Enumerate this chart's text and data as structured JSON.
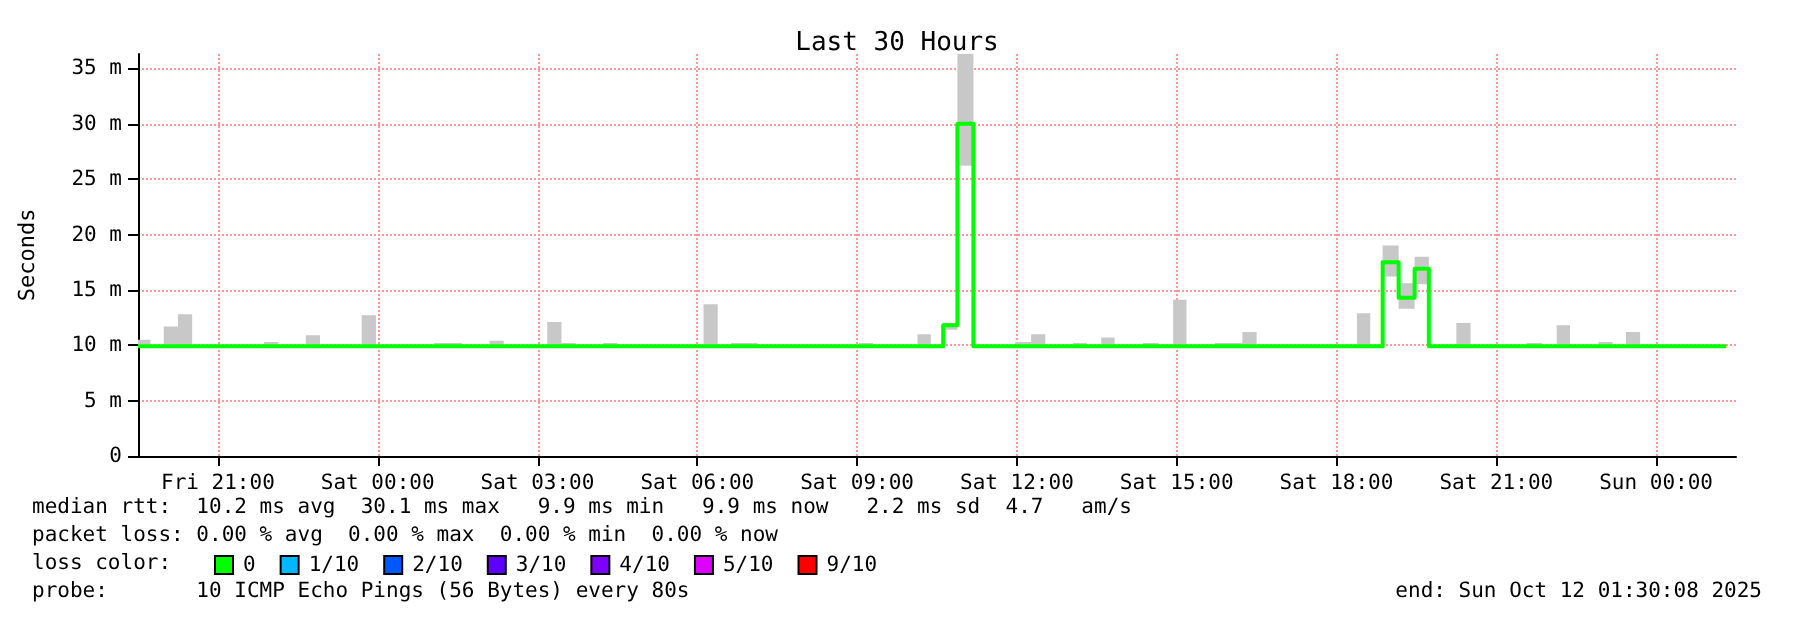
{
  "chart_data": {
    "type": "step",
    "title": "Last 30 Hours",
    "ylabel": "Seconds",
    "legend_title": "loss color:",
    "x": [
      "2025-10-10T19:30",
      "2025-10-10T19:44",
      "2025-10-10T19:59",
      "2025-10-10T20:15",
      "2025-10-10T20:31",
      "2025-10-10T21:52",
      "2025-10-10T22:08",
      "2025-10-10T22:39",
      "2025-10-10T22:55",
      "2025-10-10T23:42",
      "2025-10-10T23:58",
      "2025-10-11T01:03",
      "2025-10-11T01:35",
      "2025-10-11T02:06",
      "2025-10-11T02:22",
      "2025-10-11T03:11",
      "2025-10-11T03:27",
      "2025-10-11T03:43",
      "2025-10-11T04:14",
      "2025-10-11T04:30",
      "2025-10-11T06:07",
      "2025-10-11T06:23",
      "2025-10-11T06:38",
      "2025-10-11T07:08",
      "2025-10-11T09:02",
      "2025-10-11T09:18",
      "2025-10-11T10:08",
      "2025-10-11T10:23",
      "2025-10-11T10:37",
      "2025-10-11T10:53",
      "2025-10-11T11:11",
      "2025-10-11T11:58",
      "2025-10-11T12:16",
      "2025-10-11T12:32",
      "2025-10-11T13:03",
      "2025-10-11T13:19",
      "2025-10-11T13:35",
      "2025-10-11T13:50",
      "2025-10-11T14:22",
      "2025-10-11T14:40",
      "2025-10-11T14:56",
      "2025-10-11T15:11",
      "2025-10-11T15:43",
      "2025-10-11T16:14",
      "2025-10-11T16:30",
      "2025-10-11T18:23",
      "2025-10-11T18:38",
      "2025-10-11T18:52",
      "2025-10-11T19:10",
      "2025-10-11T19:28",
      "2025-10-11T19:44",
      "2025-10-11T20:15",
      "2025-10-11T20:31",
      "2025-10-11T21:34",
      "2025-10-11T21:52",
      "2025-10-11T22:08",
      "2025-10-11T22:23",
      "2025-10-11T22:55",
      "2025-10-11T23:11",
      "2025-10-11T23:26",
      "2025-10-11T23:42",
      "2025-10-12T01:19"
    ],
    "series": [
      {
        "name": "0",
        "color": "#00ff00",
        "values": [
          9.9,
          9.9,
          9.9,
          9.9,
          9.9,
          9.9,
          9.9,
          9.9,
          9.9,
          9.9,
          9.9,
          9.9,
          9.9,
          9.9,
          9.9,
          9.9,
          9.9,
          9.9,
          9.9,
          9.9,
          9.9,
          9.9,
          9.9,
          9.9,
          9.9,
          9.9,
          9.9,
          9.9,
          11.8,
          30,
          9.9,
          9.9,
          9.9,
          9.9,
          9.9,
          9.9,
          9.9,
          9.9,
          9.9,
          9.9,
          9.9,
          9.9,
          9.9,
          9.9,
          9.9,
          9.9,
          9.9,
          17.5,
          14.3,
          16.9,
          9.9,
          9.9,
          9.9,
          9.9,
          9.9,
          9.9,
          9.9,
          9.9,
          9.9,
          9.9,
          9.9,
          9.9
        ],
        "lower": [
          9.9,
          9.9,
          9.9,
          9.9,
          9.9,
          9.9,
          9.9,
          9.9,
          9.9,
          9.9,
          9.9,
          9.9,
          9.9,
          9.9,
          9.9,
          9.9,
          9.9,
          9.9,
          9.9,
          9.9,
          9.9,
          9.9,
          9.9,
          9.9,
          9.9,
          9.9,
          9.9,
          9.9,
          11.4,
          26.2,
          9.9,
          9.9,
          9.9,
          9.9,
          9.9,
          9.9,
          9.9,
          9.9,
          9.9,
          9.9,
          9.9,
          9.9,
          9.9,
          9.9,
          9.9,
          9.9,
          9.9,
          16.2,
          13.3,
          15.5,
          9.9,
          9.9,
          9.9,
          9.9,
          9.9,
          9.9,
          9.9,
          9.9,
          9.9,
          9.9,
          9.9,
          9.9
        ],
        "upper": [
          10.5,
          9.9,
          11.7,
          12.8,
          9.9,
          10.3,
          9.9,
          10.9,
          9.9,
          12.7,
          9.9,
          10.2,
          9.9,
          10.4,
          9.9,
          12.1,
          10.2,
          9.9,
          10.2,
          9.9,
          13.7,
          9.9,
          10.2,
          9.9,
          10.2,
          9.9,
          11,
          9.9,
          12,
          36.3,
          9.9,
          10.3,
          11,
          9.9,
          10.2,
          9.9,
          10.7,
          9.9,
          10.2,
          9.9,
          14.1,
          9.9,
          10.2,
          11.2,
          9.9,
          12.9,
          9.9,
          19,
          15.6,
          18,
          9.9,
          12,
          9.9,
          10.2,
          9.9,
          11.8,
          9.9,
          10.3,
          9.9,
          11.2,
          9.9,
          9.9
        ]
      },
      {
        "name": "1/10",
        "color": "#00b8ff",
        "values": [
          null,
          null,
          null,
          null,
          null,
          null,
          null,
          null,
          null,
          null,
          null,
          null,
          null,
          null,
          null,
          null,
          null,
          null,
          null,
          null,
          null,
          null,
          null,
          null,
          null,
          null,
          null,
          null,
          null,
          null,
          null,
          null,
          null,
          null,
          null,
          null,
          null,
          null,
          null,
          null,
          null,
          null,
          null,
          null,
          null,
          null,
          null,
          null,
          null,
          null,
          null,
          null,
          null,
          null,
          null,
          null,
          null,
          null,
          null,
          null,
          null,
          null
        ]
      },
      {
        "name": "2/10",
        "color": "#0059ff",
        "values": [
          null,
          null,
          null,
          null,
          null,
          null,
          null,
          null,
          null,
          null,
          null,
          null,
          null,
          null,
          null,
          null,
          null,
          null,
          null,
          null,
          null,
          null,
          null,
          null,
          null,
          null,
          null,
          null,
          null,
          null,
          null,
          null,
          null,
          null,
          null,
          null,
          null,
          null,
          null,
          null,
          null,
          null,
          null,
          null,
          null,
          null,
          null,
          null,
          null,
          null,
          null,
          null,
          null,
          null,
          null,
          null,
          null,
          null,
          null,
          null,
          null,
          null
        ]
      },
      {
        "name": "3/10",
        "color": "#5e00ff",
        "values": [
          null,
          null,
          null,
          null,
          null,
          null,
          null,
          null,
          null,
          null,
          null,
          null,
          null,
          null,
          null,
          null,
          null,
          null,
          null,
          null,
          null,
          null,
          null,
          null,
          null,
          null,
          null,
          null,
          null,
          null,
          null,
          null,
          null,
          null,
          null,
          null,
          null,
          null,
          null,
          null,
          null,
          null,
          null,
          null,
          null,
          null,
          null,
          null,
          null,
          null,
          null,
          null,
          null,
          null,
          null,
          null,
          null,
          null,
          null,
          null,
          null,
          null
        ]
      },
      {
        "name": "4/10",
        "color": "#7e00ff",
        "values": [
          null,
          null,
          null,
          null,
          null,
          null,
          null,
          null,
          null,
          null,
          null,
          null,
          null,
          null,
          null,
          null,
          null,
          null,
          null,
          null,
          null,
          null,
          null,
          null,
          null,
          null,
          null,
          null,
          null,
          null,
          null,
          null,
          null,
          null,
          null,
          null,
          null,
          null,
          null,
          null,
          null,
          null,
          null,
          null,
          null,
          null,
          null,
          null,
          null,
          null,
          null,
          null,
          null,
          null,
          null,
          null,
          null,
          null,
          null,
          null,
          null,
          null
        ]
      },
      {
        "name": "5/10",
        "color": "#dd00ff",
        "values": [
          null,
          null,
          null,
          null,
          null,
          null,
          null,
          null,
          null,
          null,
          null,
          null,
          null,
          null,
          null,
          null,
          null,
          null,
          null,
          null,
          null,
          null,
          null,
          null,
          null,
          null,
          null,
          null,
          null,
          null,
          null,
          null,
          null,
          null,
          null,
          null,
          null,
          null,
          null,
          null,
          null,
          null,
          null,
          null,
          null,
          null,
          null,
          null,
          null,
          null,
          null,
          null,
          null,
          null,
          null,
          null,
          null,
          null,
          null,
          null,
          null,
          null
        ]
      },
      {
        "name": "9/10",
        "color": "#ff0000",
        "values": [
          null,
          null,
          null,
          null,
          null,
          null,
          null,
          null,
          null,
          null,
          null,
          null,
          null,
          null,
          null,
          null,
          null,
          null,
          null,
          null,
          null,
          null,
          null,
          null,
          null,
          null,
          null,
          null,
          null,
          null,
          null,
          null,
          null,
          null,
          null,
          null,
          null,
          null,
          null,
          null,
          null,
          null,
          null,
          null,
          null,
          null,
          null,
          null,
          null,
          null,
          null,
          null,
          null,
          null,
          null,
          null,
          null,
          null,
          null,
          null,
          null,
          null
        ]
      }
    ],
    "xlim": [
      "2025-10-10T19:30",
      "2025-10-12T01:30"
    ],
    "xticks": [
      {
        "value": "2025-10-10T21:00",
        "label": "Fri 21:00"
      },
      {
        "value": "2025-10-11T00:00",
        "label": "Sat 00:00"
      },
      {
        "value": "2025-10-11T03:00",
        "label": "Sat 03:00"
      },
      {
        "value": "2025-10-11T06:00",
        "label": "Sat 06:00"
      },
      {
        "value": "2025-10-11T09:00",
        "label": "Sat 09:00"
      },
      {
        "value": "2025-10-11T12:00",
        "label": "Sat 12:00"
      },
      {
        "value": "2025-10-11T15:00",
        "label": "Sat 15:00"
      },
      {
        "value": "2025-10-11T18:00",
        "label": "Sat 18:00"
      },
      {
        "value": "2025-10-11T21:00",
        "label": "Sat 21:00"
      },
      {
        "value": "2025-10-12T00:00",
        "label": "Sun 00:00"
      }
    ],
    "ylim": [
      0,
      36.3
    ],
    "yticks": [
      0,
      {
        "value": 5,
        "label": "5 m"
      },
      {
        "value": 10,
        "label": "10 m"
      },
      {
        "value": 15,
        "label": "15 m"
      },
      {
        "value": 20,
        "label": "20 m"
      },
      {
        "value": 25,
        "label": "25 m"
      },
      {
        "value": 30,
        "label": "30 m"
      },
      {
        "value": 35,
        "label": "35 m"
      }
    ],
    "grid": true,
    "legend": "bottom left",
    "marker": "none",
    "line_style": "solid",
    "annotations": [
      "median rtt:  10.2 ms avg  30.1 ms max   9.9 ms min   9.9 ms now   2.2 ms sd  4.7   am/s",
      "packet loss: 0.00 % avg  0.00 % max  0.00 % min  0.00 % now",
      "probe:       10 ICMP Echo Pings (56 Bytes) every 80s",
      "end: Sun Oct 12 01:30:08 2025"
    ]
  }
}
